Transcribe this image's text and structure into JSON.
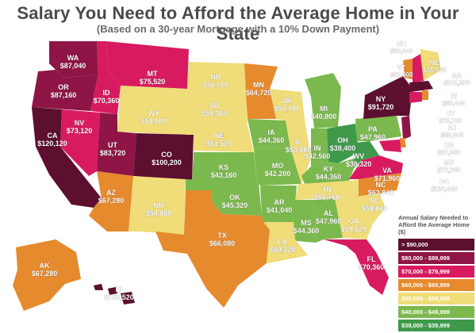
{
  "title": "Salary You Need to Afford the Average Home in Your State",
  "subtitle": "(Based on a 30-year Mortgage with a 10% Down Payment)",
  "colors": {
    "over90": "#5c0f2e",
    "b80": "#8e1545",
    "b70": "#d81b60",
    "b60": "#e68a2e",
    "b50": "#f0dc78",
    "b40": "#7bb84e",
    "b38": "#3e9a4a",
    "shade": "#c9b28a"
  },
  "legend": {
    "title": "Annual Salary Needed to Afford the Average Home ($)",
    "items": [
      {
        "label": "> $90,000",
        "color": "#5c0f2e"
      },
      {
        "label": "$80,000 - $89,999",
        "color": "#8e1545"
      },
      {
        "label": "$70,000 - $79,999",
        "color": "#d81b60"
      },
      {
        "label": "$60,000 - $69,999",
        "color": "#e68a2e"
      },
      {
        "label": "$50,000 - $59,999",
        "color": "#f0dc78"
      },
      {
        "label": "$40,000 - $49,999",
        "color": "#7bb84e"
      },
      {
        "label": "$38,000 - $39,999",
        "color": "#3e9a4a"
      }
    ]
  },
  "states": [
    {
      "abbr": "WA",
      "value": "$87,040"
    },
    {
      "abbr": "OR",
      "value": "$87,160"
    },
    {
      "abbr": "CA",
      "value": "$120,120"
    },
    {
      "abbr": "NV",
      "value": "$73,120"
    },
    {
      "abbr": "ID",
      "value": "$70,360"
    },
    {
      "abbr": "MT",
      "value": "$75,520"
    },
    {
      "abbr": "WY",
      "value": "$58,000"
    },
    {
      "abbr": "UT",
      "value": "$83,720"
    },
    {
      "abbr": "AZ",
      "value": "$67,280"
    },
    {
      "abbr": "CO",
      "value": "$100,200"
    },
    {
      "abbr": "NM",
      "value": "$54,880"
    },
    {
      "abbr": "ND",
      "value": "$56,000"
    },
    {
      "abbr": "SD",
      "value": "$55,360"
    },
    {
      "abbr": "NE",
      "value": "$51,520"
    },
    {
      "abbr": "KS",
      "value": "$43,160"
    },
    {
      "abbr": "OK",
      "value": "$45,320"
    },
    {
      "abbr": "TX",
      "value": "$66,080"
    },
    {
      "abbr": "MN",
      "value": "$64,720"
    },
    {
      "abbr": "IA",
      "value": "$44,360"
    },
    {
      "abbr": "MO",
      "value": "$42,200"
    },
    {
      "abbr": "AR",
      "value": "$41,040"
    },
    {
      "abbr": "LA",
      "value": "$50,320"
    },
    {
      "abbr": "WI",
      "value": "$50,080"
    },
    {
      "abbr": "IL",
      "value": "$53,880"
    },
    {
      "abbr": "MI",
      "value": "$40,800"
    },
    {
      "abbr": "IN",
      "value": "$42,560"
    },
    {
      "abbr": "OH",
      "value": "$38,400"
    },
    {
      "abbr": "KY",
      "value": "$44,360"
    },
    {
      "abbr": "TN",
      "value": "$55,760"
    },
    {
      "abbr": "MS",
      "value": "$44,360"
    },
    {
      "abbr": "AL",
      "value": "$47,960"
    },
    {
      "abbr": "GA",
      "value": "$59,520"
    },
    {
      "abbr": "FL",
      "value": "$70,360"
    },
    {
      "abbr": "SC",
      "value": "$58,840"
    },
    {
      "abbr": "NC",
      "value": "$63,840"
    },
    {
      "abbr": "VA",
      "value": "$71,960"
    },
    {
      "abbr": "WV",
      "value": "$38,320"
    },
    {
      "abbr": "PA",
      "value": "$47,960"
    },
    {
      "abbr": "NY",
      "value": "$91,720"
    },
    {
      "abbr": "VT",
      "value": "$62,600"
    },
    {
      "abbr": "NH",
      "value": "$68,440"
    },
    {
      "abbr": "ME",
      "value": "$55,520"
    },
    {
      "abbr": "MA",
      "value": "$101,320"
    },
    {
      "abbr": "RI",
      "value": "$69,440"
    },
    {
      "abbr": "CT",
      "value": "$75,280"
    },
    {
      "abbr": "NJ",
      "value": "$89,640"
    },
    {
      "abbr": "DE",
      "value": "$67,960"
    },
    {
      "abbr": "MD",
      "value": "$72,200"
    },
    {
      "abbr": "DC",
      "value": "$138,440"
    },
    {
      "abbr": "AK",
      "value": "$67,280"
    },
    {
      "abbr": "HI",
      "value": "$153,520"
    }
  ]
}
